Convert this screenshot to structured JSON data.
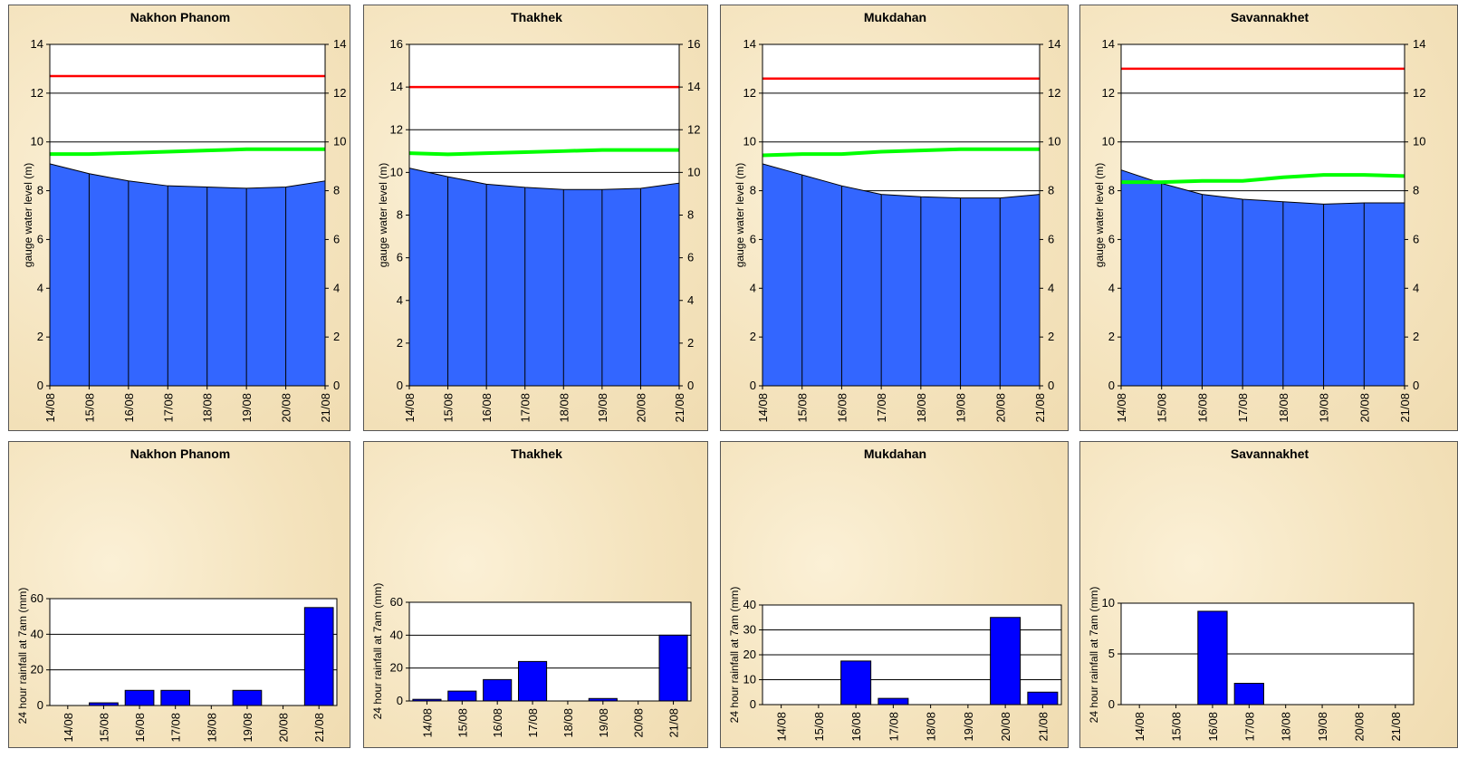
{
  "chart_data": [
    {
      "type": "area",
      "title": "Nakhon Phanom",
      "ylabel": "gauge water level (m)",
      "ylim": [
        0,
        14
      ],
      "yticks": [
        0,
        2,
        4,
        6,
        8,
        10,
        12,
        14
      ],
      "categories": [
        "14/08",
        "15/08",
        "16/08",
        "17/08",
        "18/08",
        "19/08",
        "20/08",
        "21/08"
      ],
      "values": [
        9.1,
        8.7,
        8.4,
        8.2,
        8.15,
        8.1,
        8.15,
        8.4
      ],
      "lines": [
        {
          "color": "#ff0000",
          "values": [
            12.7,
            12.7,
            12.7,
            12.7,
            12.7,
            12.7,
            12.7,
            12.7
          ]
        },
        {
          "color": "#00ff00",
          "values": [
            9.5,
            9.5,
            9.55,
            9.6,
            9.65,
            9.7,
            9.7,
            9.7
          ]
        }
      ],
      "right_axis": true
    },
    {
      "type": "area",
      "title": "Thakhek",
      "ylabel": "gauge water level (m)",
      "ylim": [
        0,
        16
      ],
      "yticks": [
        0,
        2,
        4,
        6,
        8,
        10,
        12,
        14,
        16
      ],
      "categories": [
        "14/08",
        "15/08",
        "16/08",
        "17/08",
        "18/08",
        "19/08",
        "20/08",
        "21/08"
      ],
      "values": [
        10.2,
        9.8,
        9.45,
        9.3,
        9.2,
        9.2,
        9.25,
        9.5
      ],
      "lines": [
        {
          "color": "#ff0000",
          "values": [
            14,
            14,
            14,
            14,
            14,
            14,
            14,
            14
          ]
        },
        {
          "color": "#00ff00",
          "values": [
            10.9,
            10.85,
            10.9,
            10.95,
            11.0,
            11.05,
            11.05,
            11.05
          ]
        }
      ],
      "right_axis": true
    },
    {
      "type": "area",
      "title": "Mukdahan",
      "ylabel": "gauge water level (m)",
      "ylim": [
        0,
        14
      ],
      "yticks": [
        0,
        2,
        4,
        6,
        8,
        10,
        12,
        14
      ],
      "categories": [
        "14/08",
        "15/08",
        "16/08",
        "17/08",
        "18/08",
        "19/08",
        "20/08",
        "21/08"
      ],
      "values": [
        9.1,
        8.65,
        8.2,
        7.85,
        7.75,
        7.7,
        7.7,
        7.85
      ],
      "lines": [
        {
          "color": "#ff0000",
          "values": [
            12.6,
            12.6,
            12.6,
            12.6,
            12.6,
            12.6,
            12.6,
            12.6
          ]
        },
        {
          "color": "#00ff00",
          "values": [
            9.45,
            9.5,
            9.5,
            9.6,
            9.65,
            9.7,
            9.7,
            9.7
          ]
        }
      ],
      "right_axis": true
    },
    {
      "type": "area",
      "title": "Savannakhet",
      "ylabel": "gauge water level (m)",
      "ylim": [
        0,
        14
      ],
      "yticks": [
        0,
        2,
        4,
        6,
        8,
        10,
        12,
        14
      ],
      "categories": [
        "14/08",
        "15/08",
        "16/08",
        "17/08",
        "18/08",
        "19/08",
        "20/08",
        "21/08"
      ],
      "values": [
        8.85,
        8.3,
        7.85,
        7.65,
        7.55,
        7.45,
        7.5,
        7.5
      ],
      "lines": [
        {
          "color": "#ff0000",
          "values": [
            13,
            13,
            13,
            13,
            13,
            13,
            13,
            13
          ]
        },
        {
          "color": "#00ff00",
          "values": [
            8.35,
            8.35,
            8.4,
            8.4,
            8.55,
            8.65,
            8.65,
            8.6
          ]
        }
      ],
      "right_axis": true
    },
    {
      "type": "bar",
      "title": "Nakhon Phanom",
      "ylabel": "24 hour rainfall at 7am (mm)",
      "ylim": [
        0,
        60
      ],
      "yticks": [
        0,
        20,
        40,
        60
      ],
      "categories": [
        "14/08",
        "15/08",
        "16/08",
        "17/08",
        "18/08",
        "19/08",
        "20/08",
        "21/08"
      ],
      "values": [
        0,
        1.5,
        8.5,
        8.5,
        0,
        8.5,
        0,
        55
      ]
    },
    {
      "type": "bar",
      "title": "Thakhek",
      "ylabel": "24 hour rainfall at 7am (mm)",
      "ylim": [
        0,
        60
      ],
      "yticks": [
        0,
        20,
        40,
        60
      ],
      "categories": [
        "14/08",
        "15/08",
        "16/08",
        "17/08",
        "18/08",
        "19/08",
        "20/08",
        "21/08"
      ],
      "values": [
        1,
        6,
        13,
        24,
        0,
        1.5,
        0,
        40
      ]
    },
    {
      "type": "bar",
      "title": "Mukdahan",
      "ylabel": "24 hour rainfall at 7am (mm)",
      "ylim": [
        0,
        40
      ],
      "yticks": [
        0,
        10,
        20,
        30,
        40
      ],
      "categories": [
        "14/08",
        "15/08",
        "16/08",
        "17/08",
        "18/08",
        "19/08",
        "20/08",
        "21/08"
      ],
      "values": [
        0,
        0,
        17.5,
        2.5,
        0,
        0,
        35,
        5
      ]
    },
    {
      "type": "bar",
      "title": "Savannakhet",
      "ylabel": "24 hour rainfall at 7am (mm)",
      "ylim": [
        0,
        10
      ],
      "yticks": [
        0,
        5,
        10
      ],
      "categories": [
        "14/08",
        "15/08",
        "16/08",
        "17/08",
        "18/08",
        "19/08",
        "20/08",
        "21/08"
      ],
      "values": [
        0,
        0,
        9.2,
        2.1,
        0,
        0,
        0,
        0
      ]
    }
  ]
}
